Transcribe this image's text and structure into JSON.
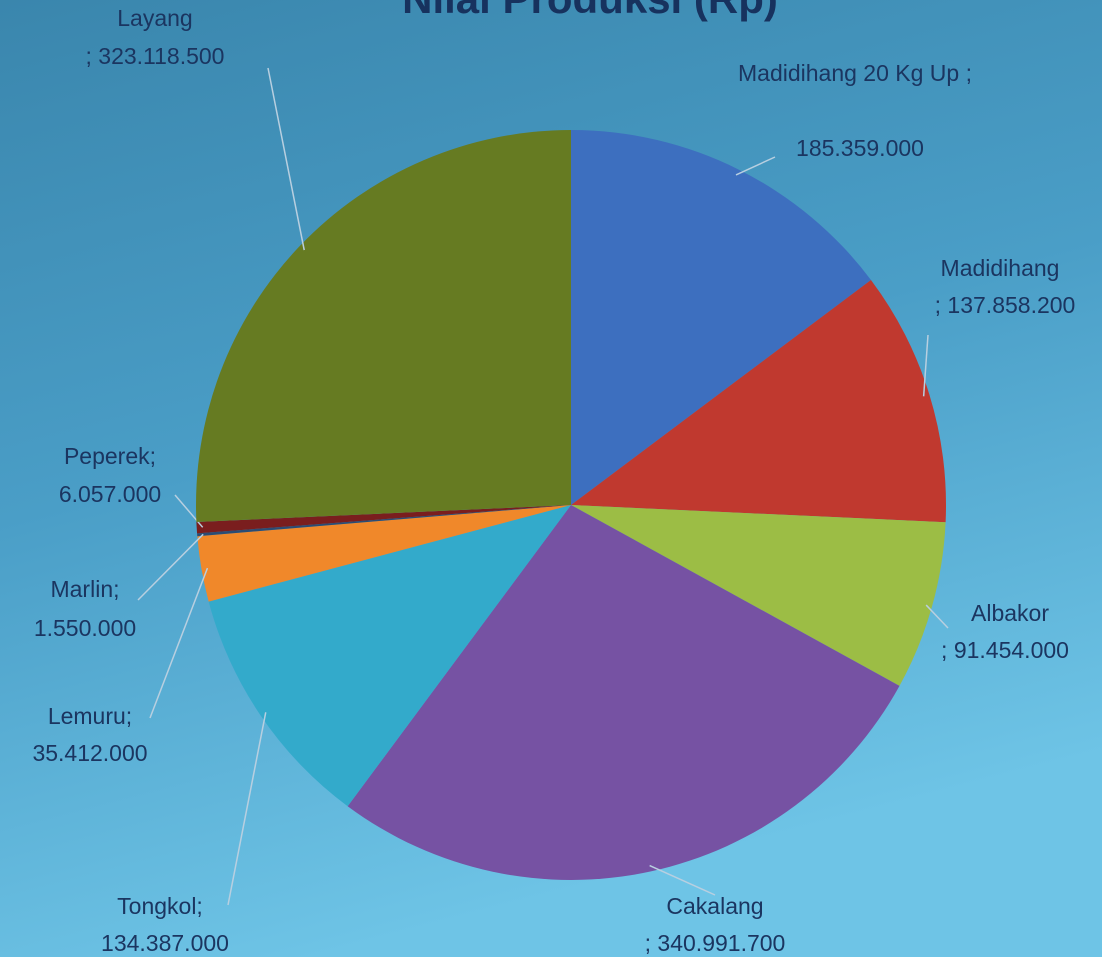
{
  "chart_data": {
    "type": "pie",
    "title": "Nilai Produksi (Rp)",
    "categories": [
      "Madidihang 20 Kg Up ;",
      "Madidihang",
      "Albakor",
      "Cakalang",
      "Tongkol;",
      "Lemuru;",
      "Marlin;",
      "Peperek;",
      "Layang"
    ],
    "values": [
      185359000,
      137858200,
      91454000,
      340991700,
      134387000,
      35412000,
      1550000,
      6057000,
      323118500
    ],
    "value_labels": [
      "185.359.000",
      "; 137.858.200",
      "; 91.454.000",
      "; 340.991.700",
      "134.387.000",
      "35.412.000",
      "1.550.000",
      "6.057.000",
      "; 323.118.500"
    ],
    "colors": [
      "#3d6fbf",
      "#c0392f",
      "#9cbd45",
      "#7652a3",
      "#33aacb",
      "#f0882a",
      "#2b4c74",
      "#7a1e1e",
      "#667b22"
    ]
  }
}
